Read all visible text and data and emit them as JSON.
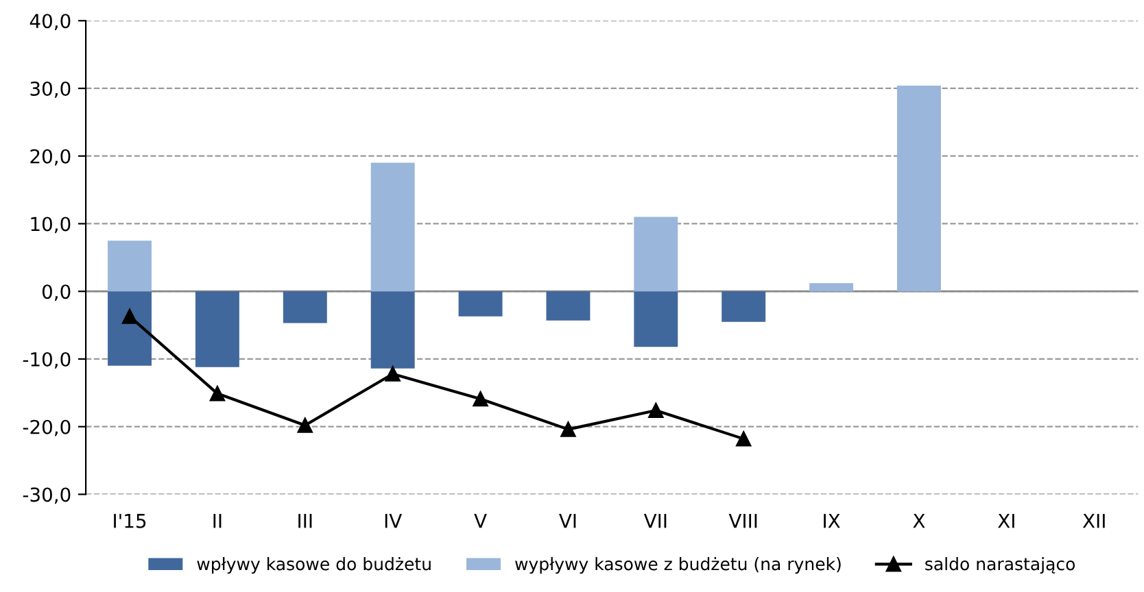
{
  "chart_data": {
    "type": "bar",
    "categories": [
      "I'15",
      "II",
      "III",
      "IV",
      "V",
      "VI",
      "VII",
      "VIII",
      "IX",
      "X",
      "XI",
      "XII"
    ],
    "series": [
      {
        "name": "wpływy kasowe do budżetu",
        "color": "#41689c",
        "values": [
          -11.0,
          -11.2,
          -4.7,
          -11.4,
          -3.7,
          -4.3,
          -8.2,
          -4.5,
          null,
          null,
          null,
          null
        ]
      },
      {
        "name": "wypływy kasowe z budżetu (na rynek)",
        "color": "#9ab6da",
        "values": [
          7.5,
          null,
          null,
          19.0,
          null,
          null,
          11.0,
          null,
          1.2,
          30.4,
          null,
          null
        ]
      },
      {
        "name": "saldo narastająco",
        "type": "line",
        "color": "#000000",
        "marker": "triangle",
        "values": [
          -3.7,
          -15.1,
          -19.8,
          -12.2,
          -15.9,
          -20.4,
          -17.6,
          -21.8,
          null,
          null,
          null,
          null
        ]
      }
    ],
    "ylim": [
      -30,
      40
    ],
    "yticks": [
      {
        "value": -30,
        "label": "-30,0"
      },
      {
        "value": -20,
        "label": "-20,0"
      },
      {
        "value": -10,
        "label": "-10,0"
      },
      {
        "value": 0,
        "label": "0,0"
      },
      {
        "value": 10,
        "label": "10,0"
      },
      {
        "value": 20,
        "label": "20,0"
      },
      {
        "value": 30,
        "label": "30,0"
      },
      {
        "value": 40,
        "label": "40,0"
      }
    ],
    "grid": "y",
    "legend": "bottom"
  }
}
